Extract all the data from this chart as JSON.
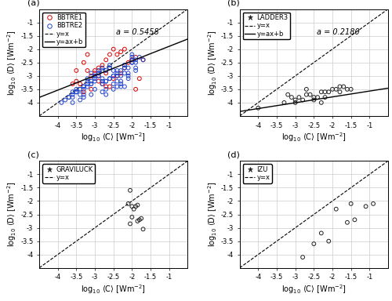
{
  "panel_a": {
    "label": "(a)",
    "annot": "a = 0.5458",
    "bbtre1_x": [
      -3.5,
      -3.3,
      -3.2,
      -3.1,
      -3.0,
      -2.9,
      -2.8,
      -2.7,
      -2.6,
      -2.5,
      -2.4,
      -2.3,
      -2.2,
      -2.1,
      -2.0,
      -1.9,
      -1.8,
      -3.4,
      -2.9,
      -3.1,
      -2.5,
      -3.0,
      -2.8,
      -2.6,
      -2.3,
      -3.3,
      -2.7,
      -2.9,
      -3.5,
      -2.2,
      -2.0,
      -3.2,
      -2.4,
      -3.6,
      -1.9,
      -2.7,
      -1.7
    ],
    "bbtre1_y": [
      -2.8,
      -2.5,
      -2.2,
      -3.0,
      -2.9,
      -2.7,
      -2.6,
      -2.4,
      -2.2,
      -2.0,
      -2.2,
      -2.1,
      -2.7,
      -2.5,
      -2.4,
      -2.3,
      -3.1,
      -3.3,
      -3.2,
      -3.5,
      -3.1,
      -2.8,
      -3.3,
      -3.4,
      -2.9,
      -3.6,
      -3.4,
      -3.0,
      -3.2,
      -2.0,
      -2.4,
      -2.8,
      -3.0,
      -3.3,
      -3.5,
      -2.9,
      -2.4
    ],
    "bbtre2_x": [
      -3.6,
      -3.5,
      -3.4,
      -3.3,
      -3.2,
      -3.1,
      -3.0,
      -2.9,
      -2.8,
      -2.7,
      -2.6,
      -2.5,
      -2.4,
      -2.3,
      -2.2,
      -2.1,
      -2.0,
      -1.9,
      -1.8,
      -3.7,
      -3.4,
      -3.1,
      -2.8,
      -2.5,
      -2.2,
      -3.6,
      -3.3,
      -3.0,
      -2.7,
      -2.4,
      -2.1,
      -3.5,
      -3.2,
      -2.9,
      -2.6,
      -2.3,
      -2.0,
      -3.4,
      -3.1,
      -2.8,
      -2.5,
      -2.2,
      -1.9,
      -3.3,
      -3.0,
      -2.7,
      -2.4,
      -2.1,
      -3.2,
      -2.9,
      -2.6,
      -2.3,
      -2.0,
      -1.7,
      -3.5,
      -2.8,
      -3.1,
      -2.6,
      -2.0,
      -2.3,
      -2.7,
      -3.3,
      -3.0,
      -2.5,
      -2.2,
      -2.8,
      -3.4,
      -2.4,
      -1.9,
      -3.6,
      -2.1,
      -3.9,
      -3.7,
      -2.3,
      -2.6,
      -3.2,
      -2.9,
      -2.7,
      -3.5,
      -3.8,
      -3.3,
      -3.0,
      -2.5,
      -2.2,
      -1.9,
      -3.1,
      -2.8,
      -2.4,
      -2.0,
      -3.6
    ],
    "bbtre2_y": [
      -3.6,
      -3.5,
      -3.7,
      -3.4,
      -3.3,
      -3.2,
      -3.0,
      -2.9,
      -3.1,
      -2.8,
      -2.7,
      -3.5,
      -2.9,
      -2.8,
      -2.6,
      -3.0,
      -2.5,
      -2.7,
      -2.3,
      -3.8,
      -3.9,
      -3.7,
      -3.6,
      -3.3,
      -3.4,
      -4.0,
      -3.8,
      -3.5,
      -3.7,
      -3.2,
      -3.1,
      -3.6,
      -3.2,
      -2.9,
      -3.1,
      -3.4,
      -2.4,
      -3.5,
      -3.3,
      -3.2,
      -3.0,
      -2.9,
      -2.8,
      -3.7,
      -3.0,
      -3.2,
      -3.4,
      -2.7,
      -3.1,
      -2.8,
      -2.6,
      -3.3,
      -2.5,
      -2.4,
      -3.6,
      -3.3,
      -2.9,
      -2.7,
      -2.2,
      -3.0,
      -3.5,
      -3.4,
      -3.1,
      -3.0,
      -2.7,
      -2.8,
      -3.5,
      -2.8,
      -2.5,
      -3.8,
      -2.9,
      -4.0,
      -3.8,
      -3.2,
      -3.1,
      -3.4,
      -3.0,
      -3.2,
      -3.6,
      -3.9,
      -3.5,
      -3.2,
      -2.8,
      -2.6,
      -2.4,
      -3.3,
      -2.7,
      -3.0,
      -2.3,
      -3.7
    ],
    "slope_a": 0.5458,
    "fit_intercept_b": -1.35,
    "color_bbtre1": "#dd0000",
    "color_bbtre2": "#2244cc"
  },
  "panel_b": {
    "label": "(b)",
    "annot": "a = 0.2180",
    "ladder3_x": [
      -3.3,
      -3.2,
      -3.1,
      -3.0,
      -2.9,
      -2.8,
      -2.7,
      -2.5,
      -2.4,
      -2.3,
      -2.2,
      -2.1,
      -1.8,
      -1.7,
      -1.6,
      -4.0,
      -2.6,
      -2.0,
      -1.9,
      -2.3,
      -3.0,
      -2.5,
      -2.2,
      -1.8,
      -1.5,
      -2.7
    ],
    "ladder3_y": [
      -4.0,
      -3.7,
      -3.8,
      -4.0,
      -3.8,
      -3.9,
      -3.7,
      -3.9,
      -3.8,
      -4.0,
      -3.8,
      -3.6,
      -3.6,
      -3.4,
      -3.5,
      -4.2,
      -3.7,
      -3.5,
      -3.5,
      -3.6,
      -3.9,
      -3.8,
      -3.6,
      -3.4,
      -3.5,
      -3.5
    ],
    "slope_a": 0.218,
    "fit_intercept_b": -3.35,
    "color_ladder3": "#222222"
  },
  "panel_c": {
    "label": "(c)",
    "graviluck_x": [
      -2.05,
      -2.1,
      -2.0,
      -1.95,
      -1.9,
      -1.85,
      -2.0,
      -1.8,
      -1.75,
      -1.7,
      -2.05,
      -1.85
    ],
    "graviluck_y": [
      -1.6,
      -2.1,
      -2.2,
      -2.3,
      -2.2,
      -2.15,
      -2.6,
      -2.7,
      -2.65,
      -3.05,
      -2.85,
      -2.75
    ],
    "color_graviluck": "#222222"
  },
  "panel_d": {
    "label": "(d)",
    "izu_x": [
      -2.8,
      -2.5,
      -2.3,
      -2.1,
      -1.9,
      -1.6,
      -1.5,
      -1.4,
      -1.1,
      -0.9
    ],
    "izu_y": [
      -4.1,
      -3.6,
      -3.2,
      -3.5,
      -2.3,
      -2.8,
      -2.1,
      -2.7,
      -2.2,
      -2.1
    ],
    "color_izu": "#222222"
  },
  "common": {
    "xlabel": "log$_{10}$ $\\langle$C$\\rangle$ [Wm$^{-2}$]",
    "ylabel": "log$_{10}$ $\\langle$D$\\rangle$ [Wm$^{-2}$]",
    "xlim": [
      -4.5,
      -0.5
    ],
    "ylim": [
      -4.5,
      -0.5
    ],
    "xticks": [
      -4.0,
      -3.5,
      -3.0,
      -2.5,
      -2.0,
      -1.5,
      -1.0
    ],
    "yticks": [
      -4.0,
      -3.5,
      -3.0,
      -2.5,
      -2.0,
      -1.5,
      -1.0
    ],
    "background_color": "#ffffff",
    "grid_color": "#cccccc",
    "tick_fontsize": 6,
    "label_fontsize": 7,
    "legend_fontsize": 6,
    "annot_fontsize": 7
  }
}
